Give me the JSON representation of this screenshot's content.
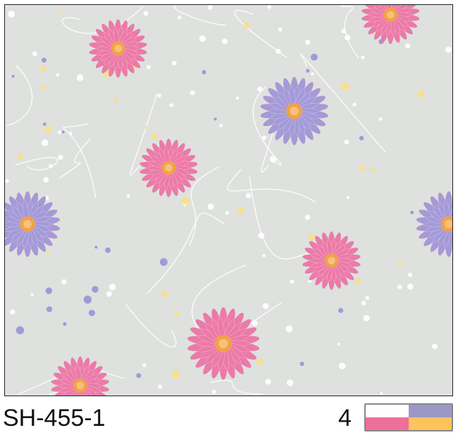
{
  "product": {
    "code": "SH-455-1",
    "color_count": "4",
    "swatch_colors": [
      "#ffffff",
      "#9b98c8",
      "#ee6f98",
      "#fdc35c"
    ]
  },
  "pattern": {
    "background": "#dfe1df",
    "flower_colors": {
      "pink": "#ec7aa8",
      "purple": "#a49ad8",
      "center": "#f2a24a"
    }
  }
}
